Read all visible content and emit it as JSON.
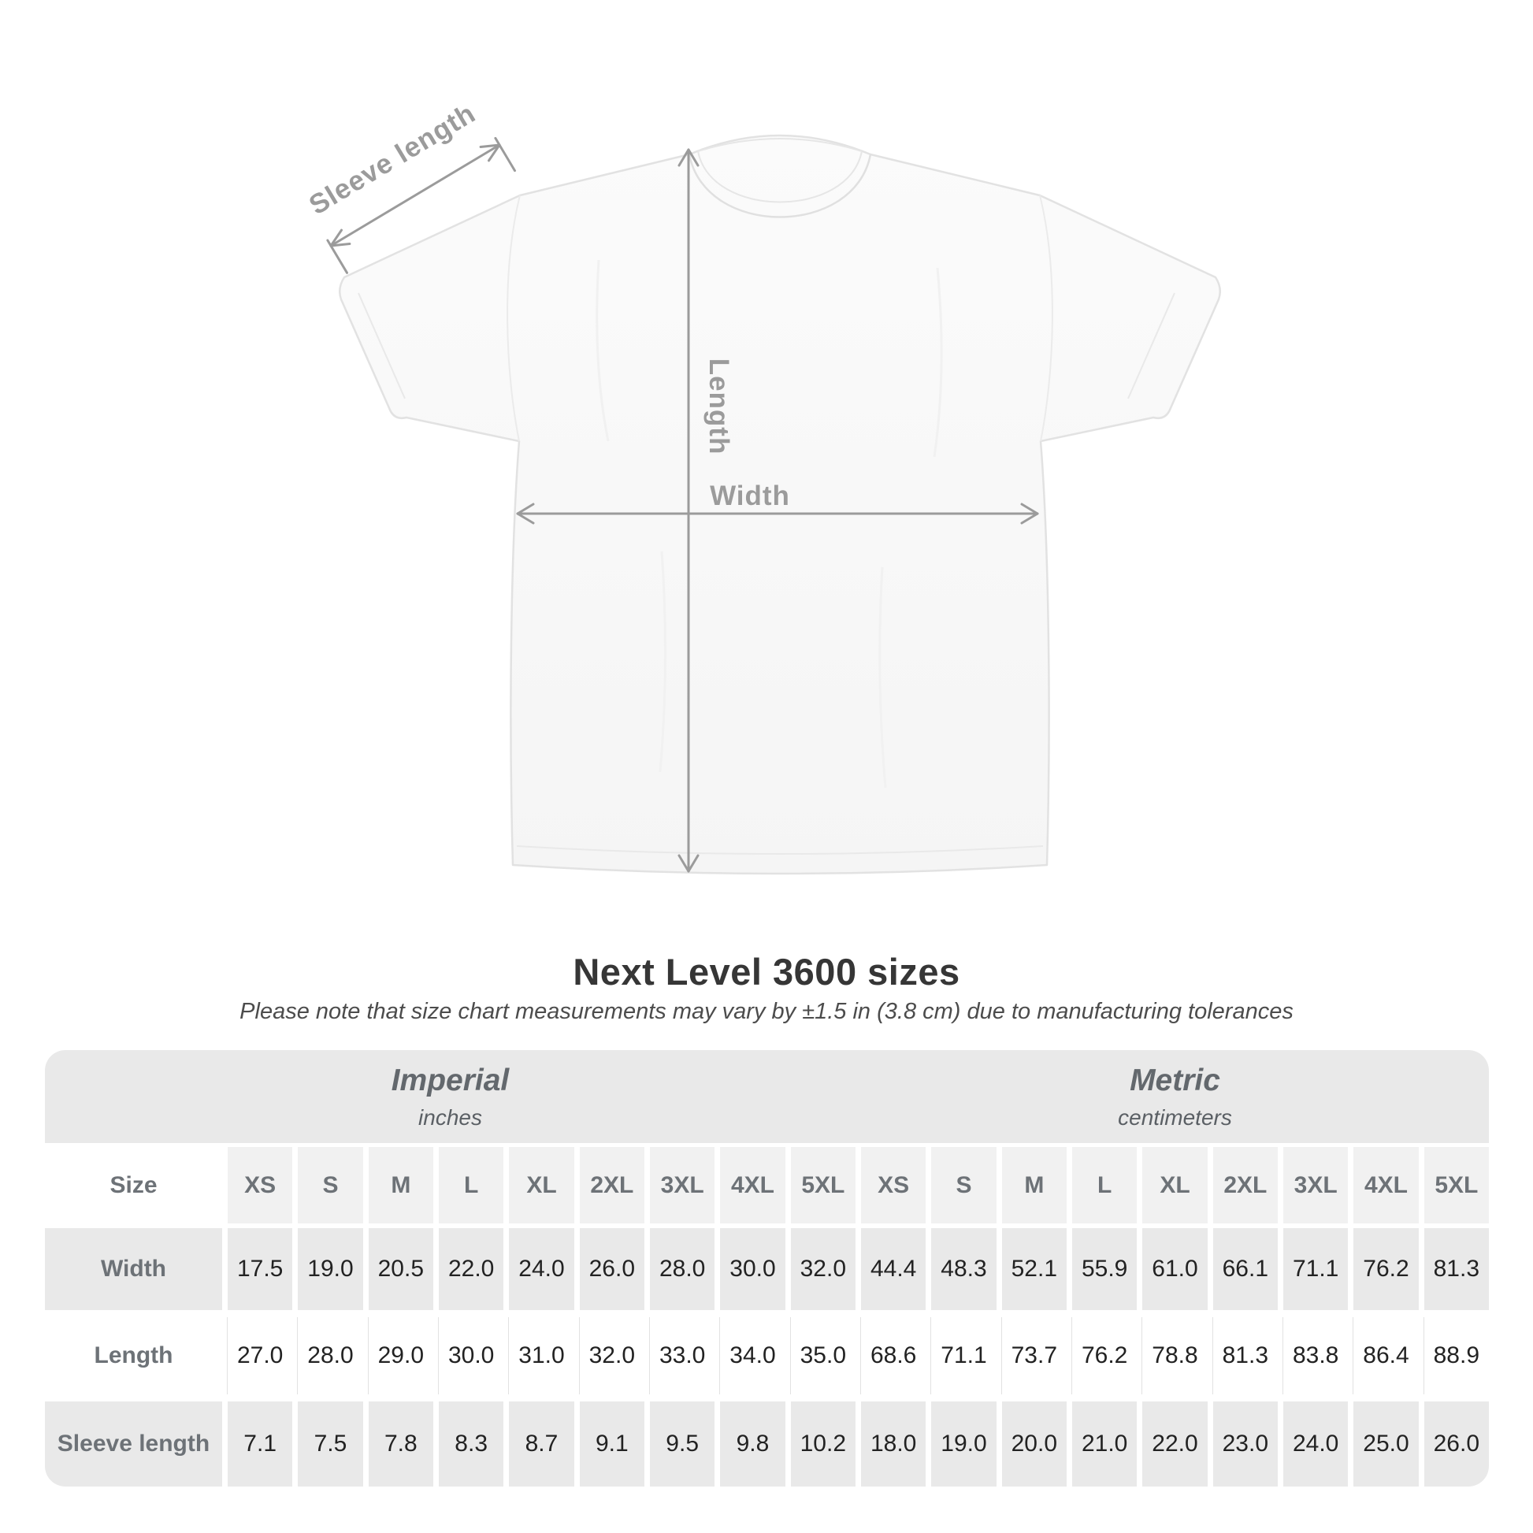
{
  "diagram": {
    "sleeve_length_label": "Sleeve length",
    "length_label": "Length",
    "width_label": "Width"
  },
  "heading": {
    "title": "Next Level 3600 sizes",
    "note": "Please note that size chart measurements may vary by ±1.5 in (3.8 cm) due to manufacturing tolerances"
  },
  "chart_data": {
    "type": "table",
    "title": "Next Level 3600 sizes",
    "note": "Please note that size chart measurements may vary by ±1.5 in (3.8 cm) due to manufacturing tolerances",
    "column_groups": [
      {
        "label": "Imperial",
        "sublabel": "inches"
      },
      {
        "label": "Metric",
        "sublabel": "centimeters"
      }
    ],
    "corner_label": "Size",
    "size_columns": [
      "XS",
      "S",
      "M",
      "L",
      "XL",
      "2XL",
      "3XL",
      "4XL",
      "5XL"
    ],
    "rows": [
      {
        "label": "Width",
        "imperial": [
          "17.5",
          "19.0",
          "20.5",
          "22.0",
          "24.0",
          "26.0",
          "28.0",
          "30.0",
          "32.0"
        ],
        "metric": [
          "44.4",
          "48.3",
          "52.1",
          "55.9",
          "61.0",
          "66.1",
          "71.1",
          "76.2",
          "81.3"
        ]
      },
      {
        "label": "Length",
        "imperial": [
          "27.0",
          "28.0",
          "29.0",
          "30.0",
          "31.0",
          "32.0",
          "33.0",
          "34.0",
          "35.0"
        ],
        "metric": [
          "68.6",
          "71.1",
          "73.7",
          "76.2",
          "78.8",
          "81.3",
          "83.8",
          "86.4",
          "88.9"
        ]
      },
      {
        "label": "Sleeve length",
        "imperial": [
          "7.1",
          "7.5",
          "7.8",
          "8.3",
          "8.7",
          "9.1",
          "9.5",
          "9.8",
          "10.2"
        ],
        "metric": [
          "18.0",
          "19.0",
          "20.0",
          "21.0",
          "22.0",
          "23.0",
          "24.0",
          "25.0",
          "26.0"
        ]
      }
    ]
  },
  "colors": {
    "band_gray": "#e9e9e9",
    "size_header_gray": "#f1f1f1",
    "label_text": "#6d7277",
    "value_text": "#222222",
    "arrow_gray": "#9b9b9b",
    "title_text": "#363636"
  }
}
